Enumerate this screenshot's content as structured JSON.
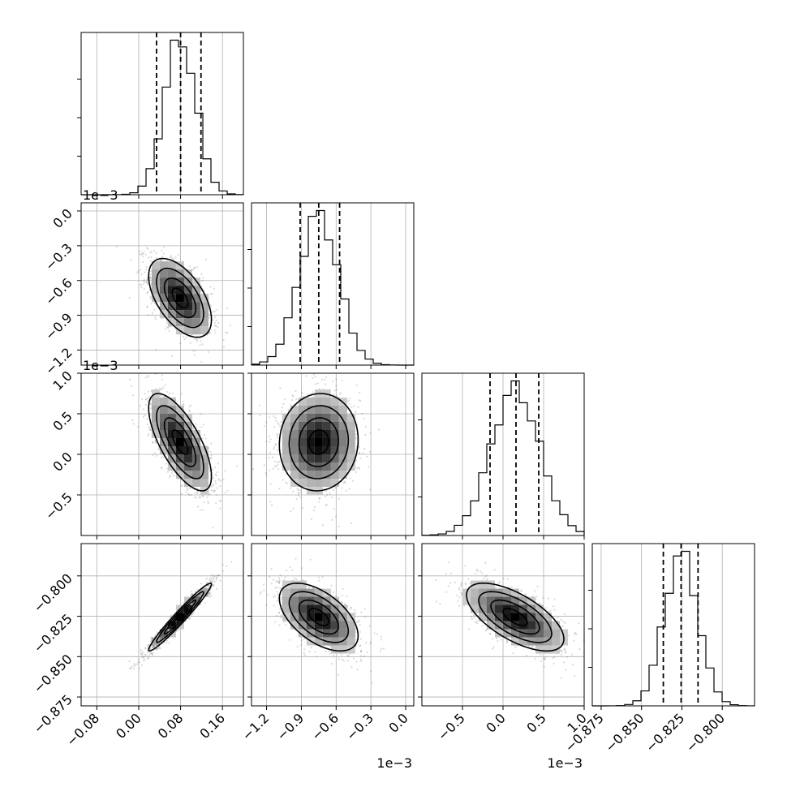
{
  "chart_data": {
    "type": "corner",
    "title": "",
    "parameters": [
      {
        "index": 0,
        "range": [
          -0.11,
          0.2
        ],
        "ticks": [
          -0.08,
          0.0,
          0.08,
          0.16
        ],
        "tick_labels": [
          "−0.08",
          "0.00",
          "0.08",
          "0.16"
        ],
        "offset_label": "",
        "quantiles": [
          0.034,
          0.08,
          0.119
        ],
        "mean": 0.079,
        "sd": 0.03
      },
      {
        "index": 1,
        "range": [
          -0.00133,
          7e-05
        ],
        "ticks": [
          -0.0012,
          -0.0009,
          -0.0006,
          -0.0003,
          0.0
        ],
        "tick_labels": [
          "−1.2",
          "−0.9",
          "−0.6",
          "−0.3",
          "0.0"
        ],
        "offset_label": "1e−3",
        "quantiles": [
          -0.00091,
          -0.00075,
          -0.00057
        ],
        "mean": -0.00075,
        "sd": 0.00017
      },
      {
        "index": 2,
        "range": [
          -0.001,
          0.001
        ],
        "ticks": [
          -0.0005,
          0.0,
          0.0005,
          0.001
        ],
        "tick_labels": [
          "−0.5",
          "0.0",
          "0.5",
          "1.0"
        ],
        "offset_label": "1e−3",
        "quantiles": [
          -0.00016,
          0.00016,
          0.00044
        ],
        "mean": 0.00015,
        "sd": 0.0003
      },
      {
        "index": 3,
        "range": [
          -0.8805,
          -0.78
        ],
        "ticks": [
          -0.875,
          -0.85,
          -0.825,
          -0.8
        ],
        "tick_labels": [
          "−0.875",
          "−0.850",
          "−0.825",
          "−0.800"
        ],
        "offset_label": "",
        "quantiles": [
          -0.8365,
          -0.8255,
          -0.815
        ],
        "mean": -0.8255,
        "sd": 0.0105
      }
    ],
    "correlations": [
      {
        "pair": [
          1,
          0
        ],
        "rho": -0.55
      },
      {
        "pair": [
          2,
          0
        ],
        "rho": -0.7
      },
      {
        "pair": [
          2,
          1
        ],
        "rho": 0.05
      },
      {
        "pair": [
          3,
          0
        ],
        "rho": 0.97
      },
      {
        "pair": [
          3,
          1
        ],
        "rho": -0.55
      },
      {
        "pair": [
          3,
          2
        ],
        "rho": -0.65
      }
    ],
    "hist_bins": 20,
    "grid": true,
    "legend": "none"
  }
}
